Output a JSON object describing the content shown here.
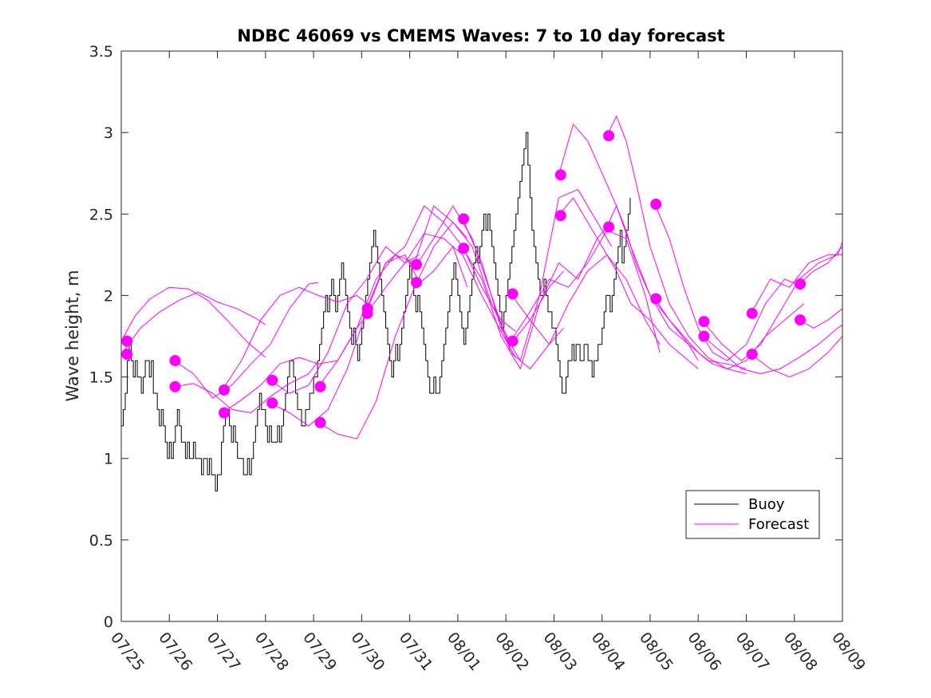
{
  "chart_data": {
    "type": "line",
    "title": "NDBC 46069 vs CMEMS Waves: 7 to 10 day forecast",
    "ylabel": "Wave height, m",
    "xlabel": "",
    "xlim": [
      0,
      15
    ],
    "ylim": [
      0,
      3.5
    ],
    "x_ticks": [
      0,
      1,
      2,
      3,
      4,
      5,
      6,
      7,
      8,
      9,
      10,
      11,
      12,
      13,
      14,
      15
    ],
    "x_tick_labels": [
      "07/25",
      "07/26",
      "07/27",
      "07/28",
      "07/29",
      "07/30",
      "07/31",
      "08/01",
      "08/02",
      "08/03",
      "08/04",
      "08/05",
      "08/06",
      "08/07",
      "08/08",
      "08/09"
    ],
    "y_ticks": [
      0,
      0.5,
      1,
      1.5,
      2,
      2.5,
      3,
      3.5
    ],
    "y_tick_labels": [
      "0",
      "0.5",
      "1",
      "1.5",
      "2",
      "2.5",
      "3",
      "3.5"
    ],
    "x_unit": "days since 07/25",
    "grid": false,
    "legend_position": "lower-right",
    "legend": [
      "Buoy",
      "Forecast"
    ],
    "colors": {
      "buoy": "#000000",
      "forecast": "#ff00ff"
    },
    "series": [
      {
        "name": "Buoy",
        "step": 0.04167,
        "x_start": 0,
        "values": [
          1.2,
          1.3,
          1.4,
          1.6,
          1.7,
          1.6,
          1.5,
          1.6,
          1.5,
          1.5,
          1.4,
          1.5,
          1.6,
          1.6,
          1.5,
          1.6,
          1.4,
          1.4,
          1.3,
          1.2,
          1.3,
          1.2,
          1.1,
          1.0,
          1.1,
          1.0,
          1.1,
          1.2,
          1.3,
          1.2,
          1.1,
          1.1,
          1.0,
          1.1,
          1.0,
          1.0,
          1.1,
          1.0,
          1.0,
          1.0,
          0.9,
          1.0,
          1.0,
          0.9,
          1.0,
          0.9,
          0.9,
          0.8,
          0.9,
          0.9,
          1.1,
          1.2,
          1.3,
          1.3,
          1.2,
          1.1,
          1.2,
          1.1,
          1.0,
          1.0,
          1.0,
          0.9,
          0.9,
          1.0,
          0.9,
          1.0,
          1.1,
          1.2,
          1.3,
          1.4,
          1.3,
          1.3,
          1.2,
          1.1,
          1.2,
          1.1,
          1.1,
          1.1,
          1.2,
          1.1,
          1.2,
          1.3,
          1.4,
          1.5,
          1.6,
          1.6,
          1.5,
          1.4,
          1.3,
          1.3,
          1.2,
          1.2,
          1.3,
          1.3,
          1.4,
          1.4,
          1.5,
          1.5,
          1.6,
          1.7,
          1.8,
          1.9,
          2.0,
          1.9,
          2.0,
          2.1,
          2.0,
          1.9,
          2.0,
          2.1,
          2.2,
          2.1,
          2.0,
          1.9,
          1.8,
          1.7,
          1.8,
          1.7,
          1.6,
          1.7,
          1.8,
          1.9,
          2.0,
          2.1,
          2.2,
          2.3,
          2.4,
          2.3,
          2.2,
          2.1,
          2.0,
          1.9,
          1.8,
          1.7,
          1.6,
          1.5,
          1.6,
          1.7,
          1.6,
          1.7,
          1.8,
          1.9,
          2.0,
          2.1,
          2.2,
          2.1,
          2.0,
          1.9,
          2.0,
          1.9,
          1.8,
          1.7,
          1.6,
          1.5,
          1.4,
          1.4,
          1.5,
          1.4,
          1.4,
          1.5,
          1.6,
          1.7,
          1.8,
          1.9,
          2.0,
          2.1,
          2.2,
          2.1,
          2.0,
          1.9,
          1.8,
          1.7,
          1.8,
          1.9,
          2.0,
          2.1,
          2.2,
          2.3,
          2.2,
          2.3,
          2.4,
          2.5,
          2.4,
          2.5,
          2.4,
          2.3,
          2.2,
          2.1,
          2.0,
          1.9,
          1.8,
          1.9,
          2.0,
          2.1,
          2.2,
          2.3,
          2.4,
          2.5,
          2.6,
          2.7,
          2.8,
          2.9,
          3.0,
          2.8,
          2.6,
          2.4,
          2.3,
          2.2,
          2.1,
          2.0,
          2.0,
          2.1,
          2.0,
          1.9,
          1.9,
          1.8,
          1.8,
          1.7,
          1.6,
          1.5,
          1.4,
          1.4,
          1.5,
          1.6,
          1.6,
          1.7,
          1.6,
          1.7,
          1.7,
          1.6,
          1.6,
          1.7,
          1.7,
          1.6,
          1.6,
          1.5,
          1.6,
          1.6,
          1.7,
          1.7,
          1.8,
          1.9,
          2.0,
          2.0,
          1.9,
          2.0,
          2.1,
          2.2,
          2.3,
          2.4,
          2.2,
          2.3,
          2.4,
          2.5,
          2.6
        ]
      },
      {
        "name": "Forecast",
        "x": [
          0,
          0.3,
          0.6,
          1.0,
          1.4,
          1.8,
          2.2,
          2.6,
          3.0
        ],
        "y": [
          1.72,
          1.88,
          1.98,
          2.05,
          2.04,
          1.97,
          1.85,
          1.72,
          1.62
        ]
      },
      {
        "name": "Forecast",
        "x": [
          0,
          0.4,
          0.8,
          1.2,
          1.6,
          2.0,
          2.4,
          2.8,
          3.0
        ],
        "y": [
          1.64,
          1.8,
          1.9,
          1.97,
          2.02,
          1.96,
          1.92,
          1.86,
          1.82
        ]
      },
      {
        "name": "Forecast",
        "x": [
          1.1,
          1.5,
          1.9,
          2.3,
          2.7,
          3.1,
          3.5,
          3.9,
          4.1
        ],
        "y": [
          1.6,
          1.52,
          1.37,
          1.45,
          1.58,
          1.7,
          1.92,
          2.07,
          2.08
        ]
      },
      {
        "name": "Forecast",
        "x": [
          1.1,
          1.5,
          1.9,
          2.3,
          2.7,
          3.1,
          3.5,
          3.9,
          4.1
        ],
        "y": [
          1.44,
          1.46,
          1.4,
          1.3,
          1.28,
          1.38,
          1.46,
          1.52,
          1.6
        ]
      },
      {
        "name": "Forecast",
        "x": [
          2.1,
          2.5,
          2.9,
          3.3,
          3.7,
          4.1,
          4.5,
          4.9,
          5.2
        ],
        "y": [
          1.42,
          1.6,
          1.85,
          2.0,
          2.05,
          2.0,
          1.96,
          2.0,
          1.93
        ]
      },
      {
        "name": "Forecast",
        "x": [
          2.1,
          2.5,
          2.9,
          3.3,
          3.7,
          4.1,
          4.5,
          4.9,
          5.2
        ],
        "y": [
          1.28,
          1.36,
          1.45,
          1.58,
          1.62,
          1.58,
          1.6,
          1.8,
          1.92
        ]
      },
      {
        "name": "Forecast",
        "x": [
          3.1,
          3.5,
          3.9,
          4.3,
          4.7,
          5.1,
          5.5,
          5.9,
          6.2
        ],
        "y": [
          1.48,
          1.4,
          1.45,
          1.65,
          1.95,
          2.1,
          2.3,
          2.2,
          2.25
        ]
      },
      {
        "name": "Forecast",
        "x": [
          3.1,
          3.5,
          3.9,
          4.3,
          4.7,
          5.1,
          5.5,
          5.9,
          6.2
        ],
        "y": [
          1.34,
          1.28,
          1.2,
          1.3,
          1.55,
          1.9,
          2.2,
          2.25,
          2.08
        ]
      },
      {
        "name": "Forecast",
        "x": [
          4.1,
          4.5,
          4.9,
          5.3,
          5.7,
          6.1,
          6.5,
          6.9,
          7.2
        ],
        "y": [
          1.44,
          1.6,
          1.8,
          2.1,
          2.25,
          2.2,
          2.55,
          2.45,
          2.35
        ]
      },
      {
        "name": "Forecast",
        "x": [
          4.1,
          4.5,
          4.9,
          5.3,
          5.7,
          6.1,
          6.5,
          6.9,
          7.2
        ],
        "y": [
          1.22,
          1.15,
          1.12,
          1.35,
          1.75,
          2.05,
          2.15,
          2.3,
          2.05
        ]
      },
      {
        "name": "Forecast",
        "x": [
          5.1,
          5.5,
          5.9,
          6.3,
          6.7,
          7.1,
          7.5,
          7.9,
          8.2
        ],
        "y": [
          1.92,
          2.2,
          2.3,
          2.55,
          2.45,
          2.3,
          2.05,
          1.85,
          1.78
        ]
      },
      {
        "name": "Forecast",
        "x": [
          5.1,
          5.5,
          5.9,
          6.3,
          6.7,
          7.1,
          7.5,
          7.9,
          8.2
        ],
        "y": [
          1.89,
          2.05,
          2.2,
          2.38,
          2.35,
          2.25,
          2.0,
          1.78,
          1.62
        ]
      },
      {
        "name": "Forecast",
        "x": [
          6.15,
          6.5,
          6.9,
          7.3,
          7.7,
          8.1,
          8.5,
          8.9,
          9.2
        ],
        "y": [
          2.19,
          2.35,
          2.55,
          2.35,
          2.0,
          1.65,
          1.55,
          1.7,
          1.8
        ]
      },
      {
        "name": "Forecast",
        "x": [
          6.15,
          6.5,
          6.9,
          7.3,
          7.7,
          8.1,
          8.5,
          8.9,
          9.2
        ],
        "y": [
          2.08,
          2.3,
          2.45,
          2.3,
          1.95,
          1.7,
          1.85,
          2.05,
          2.15
        ]
      },
      {
        "name": "Forecast",
        "x": [
          7.1,
          7.5,
          7.9,
          8.3,
          8.7,
          9.1,
          9.5,
          9.9,
          10.2
        ],
        "y": [
          2.47,
          2.2,
          1.8,
          1.6,
          2.0,
          2.6,
          2.65,
          2.45,
          2.3
        ]
      },
      {
        "name": "Forecast",
        "x": [
          7.1,
          7.5,
          7.9,
          8.3,
          8.7,
          9.1,
          9.5,
          9.9,
          10.2
        ],
        "y": [
          2.29,
          2.1,
          1.75,
          1.55,
          1.95,
          2.2,
          2.1,
          2.35,
          2.45
        ]
      },
      {
        "name": "Forecast",
        "x": [
          8.1,
          8.5,
          8.9,
          9.3,
          9.7,
          10.1,
          10.5,
          10.9,
          11.2
        ],
        "y": [
          2.01,
          1.85,
          1.7,
          1.95,
          2.15,
          2.25,
          2.1,
          1.85,
          1.7
        ]
      },
      {
        "name": "Forecast",
        "x": [
          8.1,
          8.5,
          8.9,
          9.3,
          9.7,
          10.1,
          10.5,
          10.9,
          11.2
        ],
        "y": [
          1.72,
          1.9,
          2.1,
          2.05,
          2.2,
          2.4,
          2.35,
          2.0,
          1.65
        ]
      },
      {
        "name": "Forecast",
        "x": [
          9.1,
          9.4,
          9.7,
          10.0,
          10.3,
          10.6,
          11.0,
          11.4,
          11.8,
          12.0
        ],
        "y": [
          2.74,
          3.05,
          2.95,
          2.75,
          2.55,
          2.3,
          2.0,
          1.8,
          1.7,
          1.6
        ]
      },
      {
        "name": "Forecast",
        "x": [
          9.1,
          9.4,
          9.7,
          10.0,
          10.3,
          10.6,
          11.0,
          11.4,
          11.8,
          12.0
        ],
        "y": [
          2.49,
          2.6,
          2.45,
          2.3,
          2.15,
          1.95,
          1.85,
          1.7,
          1.6,
          1.55
        ]
      },
      {
        "name": "Forecast",
        "x": [
          10.1,
          10.3,
          10.5,
          10.7,
          11.0,
          11.4,
          11.8,
          12.2,
          12.6,
          13.0
        ],
        "y": [
          2.98,
          3.1,
          2.95,
          2.7,
          2.3,
          1.95,
          1.75,
          1.62,
          1.55,
          1.52
        ]
      },
      {
        "name": "Forecast",
        "x": [
          10.1,
          10.3,
          10.5,
          10.7,
          11.0,
          11.4,
          11.8,
          12.2,
          12.6,
          13.0
        ],
        "y": [
          2.42,
          2.55,
          2.4,
          2.2,
          2.0,
          1.85,
          1.7,
          1.6,
          1.58,
          1.55
        ]
      },
      {
        "name": "Forecast",
        "x": [
          11.1,
          11.4,
          11.7,
          12.0,
          12.3,
          12.6,
          13.0,
          13.4,
          13.8,
          14.2
        ],
        "y": [
          2.56,
          2.35,
          2.05,
          1.8,
          1.65,
          1.6,
          1.7,
          1.95,
          2.1,
          2.05
        ]
      },
      {
        "name": "Forecast",
        "x": [
          11.1,
          11.4,
          11.7,
          12.0,
          12.3,
          12.6,
          13.0,
          13.4,
          13.8,
          14.2
        ],
        "y": [
          1.98,
          1.85,
          1.75,
          1.65,
          1.58,
          1.55,
          1.6,
          1.75,
          1.85,
          1.95
        ]
      },
      {
        "name": "Forecast",
        "x": [
          12.1,
          12.5,
          12.9,
          13.3,
          13.7,
          14.1,
          14.5,
          14.9,
          15.0
        ],
        "y": [
          1.84,
          1.7,
          1.6,
          1.7,
          1.9,
          2.1,
          2.2,
          2.25,
          2.33
        ]
      },
      {
        "name": "Forecast",
        "x": [
          12.1,
          12.5,
          12.9,
          13.3,
          13.7,
          14.1,
          14.5,
          14.9,
          15.0
        ],
        "y": [
          1.75,
          1.65,
          1.55,
          1.52,
          1.55,
          1.62,
          1.7,
          1.8,
          1.82
        ]
      },
      {
        "name": "Forecast",
        "x": [
          13.1,
          13.5,
          13.9,
          14.3,
          14.7,
          15.0
        ],
        "y": [
          1.89,
          2.1,
          2.05,
          2.2,
          2.25,
          2.25
        ]
      },
      {
        "name": "Forecast",
        "x": [
          13.1,
          13.5,
          13.9,
          14.3,
          14.7,
          15.0
        ],
        "y": [
          1.64,
          1.55,
          1.5,
          1.55,
          1.65,
          1.75
        ]
      },
      {
        "name": "Forecast",
        "x": [
          14.1,
          14.4,
          14.7,
          15.0
        ],
        "y": [
          2.07,
          2.15,
          2.2,
          2.3
        ]
      },
      {
        "name": "Forecast",
        "x": [
          14.1,
          14.4,
          14.7,
          15.0
        ],
        "y": [
          1.85,
          1.8,
          1.85,
          1.92
        ]
      }
    ],
    "markers": {
      "name": "Forecast start points",
      "x": [
        0.12,
        0.12,
        1.12,
        1.12,
        2.14,
        2.14,
        3.14,
        3.14,
        4.14,
        4.14,
        5.12,
        5.12,
        6.14,
        6.14,
        7.12,
        7.12,
        8.14,
        8.14,
        9.14,
        9.14,
        10.14,
        10.14,
        11.12,
        11.12,
        12.12,
        12.12,
        13.12,
        13.12,
        14.12,
        14.12
      ],
      "y": [
        1.72,
        1.64,
        1.6,
        1.44,
        1.42,
        1.28,
        1.48,
        1.34,
        1.44,
        1.22,
        1.92,
        1.89,
        2.19,
        2.08,
        2.47,
        2.29,
        2.01,
        1.72,
        2.74,
        2.49,
        2.98,
        2.42,
        2.56,
        1.98,
        1.84,
        1.75,
        1.89,
        1.64,
        2.07,
        1.85
      ]
    }
  }
}
